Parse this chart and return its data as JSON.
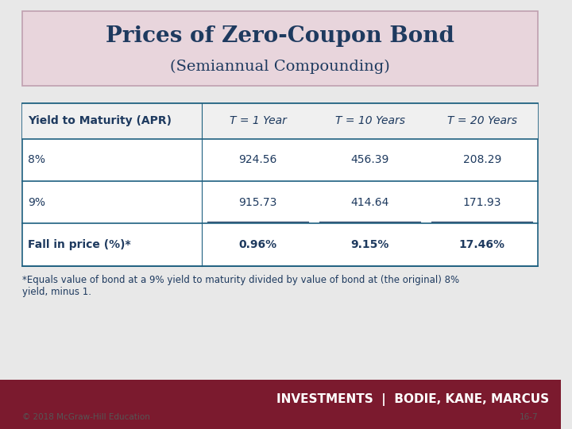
{
  "title_line1": "Prices of Zero-Coupon Bond",
  "title_line2": "(Semiannual Compounding)",
  "title_bg_color": "#e8d5dc",
  "title_border_color": "#c0a0b0",
  "title_text_color": "#1e3a5f",
  "bg_color": "#e8e8e8",
  "table_header": [
    "Yield to Maturity (APR)",
    "T = 1 Year",
    "T = 10 Years",
    "T = 20 Years"
  ],
  "table_rows": [
    [
      "8%",
      "924.56",
      "456.39",
      "208.29"
    ],
    [
      "9%",
      "915.73",
      "414.64",
      "171.93"
    ],
    [
      "Fall in price (%)*",
      "0.96%",
      "9.15%",
      "17.46%"
    ]
  ],
  "table_header_color": "#1e3a5f",
  "table_row_color": "#1e3a5f",
  "table_border_color": "#1e6080",
  "table_bg": "#ffffff",
  "footnote": "*Equals value of bond at a 9% yield to maturity divided by value of bond at (the original) 8%\nyield, minus 1.",
  "footnote_color": "#1e3a5f",
  "footer_bg": "#7b1a2e",
  "footer_text": "INVESTMENTS  |  BODIE, KANE, MARCUS",
  "footer_text_color": "#ffffff",
  "bottom_left_text": "© 2018 McGraw-Hill Education",
  "bottom_right_text": "16-7",
  "bottom_text_color": "#555555"
}
